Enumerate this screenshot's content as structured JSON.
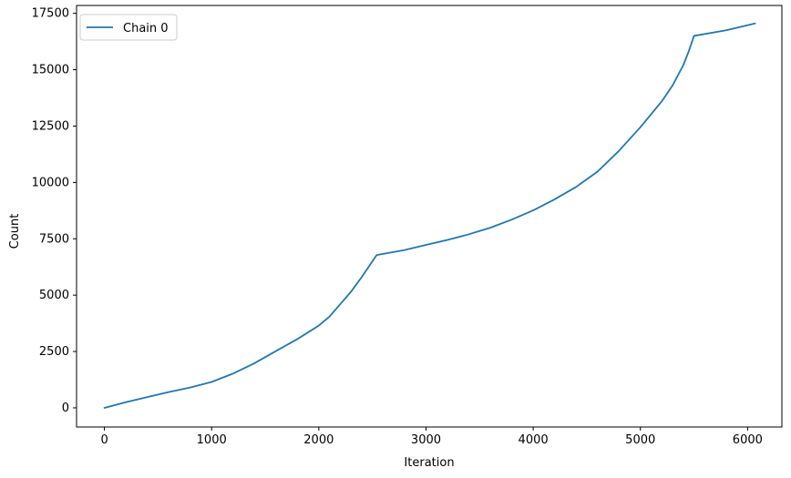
{
  "chart_data": {
    "type": "line",
    "title": "",
    "xlabel": "Iteration",
    "ylabel": "Count",
    "xlim": [
      -260,
      6320
    ],
    "ylim": [
      -850,
      17850
    ],
    "xticks": [
      0,
      1000,
      2000,
      3000,
      4000,
      5000,
      6000
    ],
    "yticks": [
      0,
      2500,
      5000,
      7500,
      10000,
      12500,
      15000,
      17500
    ],
    "xtick_labels": [
      "0",
      "1000",
      "2000",
      "3000",
      "4000",
      "5000",
      "6000"
    ],
    "ytick_labels": [
      "0",
      "2500",
      "5000",
      "7500",
      "10000",
      "12500",
      "15000",
      "17500"
    ],
    "grid": false,
    "legend_position": "top-left",
    "series": [
      {
        "name": "Chain 0",
        "color": "#1f77b4",
        "x": [
          0,
          200,
          400,
          600,
          800,
          1000,
          1200,
          1400,
          1600,
          1800,
          2000,
          2100,
          2200,
          2300,
          2400,
          2450,
          2500,
          2540,
          2800,
          3000,
          3200,
          3400,
          3600,
          3800,
          4000,
          4200,
          4400,
          4600,
          4800,
          5000,
          5200,
          5300,
          5400,
          5450,
          5500,
          5800,
          6070
        ],
        "values": [
          0,
          250,
          480,
          700,
          900,
          1150,
          1520,
          1980,
          2520,
          3050,
          3650,
          4050,
          4600,
          5150,
          5800,
          6150,
          6500,
          6780,
          7000,
          7230,
          7450,
          7700,
          7990,
          8350,
          8760,
          9250,
          9800,
          10480,
          11400,
          12450,
          13600,
          14300,
          15200,
          15800,
          16500,
          16750,
          17050
        ]
      }
    ]
  }
}
